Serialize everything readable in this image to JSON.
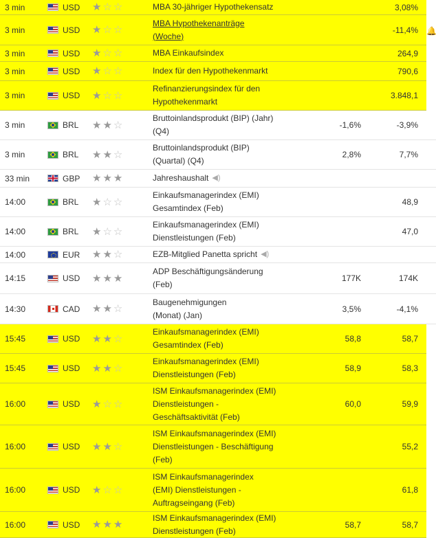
{
  "rows": [
    {
      "time": "3 min",
      "flag": "us",
      "currency": "USD",
      "stars": 1,
      "event": "MBA 30-jähriger Hypothekensatz",
      "actual": "",
      "previous": "3,08%",
      "highlight": true
    },
    {
      "time": "3 min",
      "flag": "us",
      "currency": "USD",
      "stars": 1,
      "event": "MBA Hypothekenanträge (Woche)",
      "actual": "",
      "previous": "-11,4%",
      "highlight": true,
      "link": true
    },
    {
      "time": "3 min",
      "flag": "us",
      "currency": "USD",
      "stars": 1,
      "event": "MBA Einkaufsindex",
      "actual": "",
      "previous": "264,9",
      "highlight": true
    },
    {
      "time": "3 min",
      "flag": "us",
      "currency": "USD",
      "stars": 1,
      "event": "Index für den Hypothekenmarkt",
      "actual": "",
      "previous": "790,6",
      "highlight": true
    },
    {
      "time": "3 min",
      "flag": "us",
      "currency": "USD",
      "stars": 1,
      "event": "Refinanzierungsindex für den Hypothekenmarkt",
      "actual": "",
      "previous": "3.848,1",
      "highlight": true
    },
    {
      "time": "3 min",
      "flag": "br",
      "currency": "BRL",
      "stars": 2,
      "event": "Bruttoinlandsprodukt (BIP) (Jahr) (Q4)",
      "actual": "-1,6%",
      "previous": "-3,9%",
      "highlight": false
    },
    {
      "time": "3 min",
      "flag": "br",
      "currency": "BRL",
      "stars": 2,
      "event": "Bruttoinlandsprodukt (BIP) (Quartal) (Q4)",
      "actual": "2,8%",
      "previous": "7,7%",
      "highlight": false
    },
    {
      "time": "33 min",
      "flag": "gb",
      "currency": "GBP",
      "stars": 3,
      "event": "Jahreshaushalt",
      "actual": "",
      "previous": "",
      "highlight": false,
      "speaker": true
    },
    {
      "time": "14:00",
      "flag": "br",
      "currency": "BRL",
      "stars": 1,
      "event": "Einkaufsmanagerindex (EMI) Gesamtindex (Feb)",
      "actual": "",
      "previous": "48,9",
      "highlight": false
    },
    {
      "time": "14:00",
      "flag": "br",
      "currency": "BRL",
      "stars": 1,
      "event": "Einkaufsmanagerindex (EMI) Dienstleistungen (Feb)",
      "actual": "",
      "previous": "47,0",
      "highlight": false
    },
    {
      "time": "14:00",
      "flag": "eu",
      "currency": "EUR",
      "stars": 2,
      "event": "EZB-Mitglied Panetta spricht",
      "actual": "",
      "previous": "",
      "highlight": false,
      "speaker": true
    },
    {
      "time": "14:15",
      "flag": "us",
      "currency": "USD",
      "stars": 3,
      "event": "ADP Beschäftigungsänderung (Feb)",
      "actual": "177K",
      "previous": "174K",
      "highlight": false
    },
    {
      "time": "14:30",
      "flag": "ca",
      "currency": "CAD",
      "stars": 2,
      "event": "Baugenehmigungen (Monat) (Jan)",
      "actual": "3,5%",
      "previous": "-4,1%",
      "highlight": false
    },
    {
      "time": "15:45",
      "flag": "us",
      "currency": "USD",
      "stars": 2,
      "event": "Einkaufsmanagerindex (EMI) Gesamtindex (Feb)",
      "actual": "58,8",
      "previous": "58,7",
      "highlight": true
    },
    {
      "time": "15:45",
      "flag": "us",
      "currency": "USD",
      "stars": 2,
      "event": "Einkaufsmanagerindex (EMI) Dienstleistungen (Feb)",
      "actual": "58,9",
      "previous": "58,3",
      "highlight": true
    },
    {
      "time": "16:00",
      "flag": "us",
      "currency": "USD",
      "stars": 1,
      "event": "ISM Einkaufsmanagerindex (EMI) Dienstleistungen - Geschäftsaktivität (Feb)",
      "actual": "60,0",
      "previous": "59,9",
      "highlight": true
    },
    {
      "time": "16:00",
      "flag": "us",
      "currency": "USD",
      "stars": 2,
      "event": "ISM Einkaufsmanagerindex (EMI) Dienstleistungen - Beschäftigung (Feb)",
      "actual": "",
      "previous": "55,2",
      "highlight": true
    },
    {
      "time": "16:00",
      "flag": "us",
      "currency": "USD",
      "stars": 1,
      "event": "ISM Einkaufsmanagerindex (EMI) Dienstleistungen - Auftragseingang (Feb)",
      "actual": "",
      "previous": "61,8",
      "highlight": true
    },
    {
      "time": "16:00",
      "flag": "us",
      "currency": "USD",
      "stars": 3,
      "event": "ISM Einkaufsmanagerindex (EMI) Dienstleistungen (Feb)",
      "actual": "58,7",
      "previous": "58,7",
      "highlight": true
    }
  ],
  "icons": {
    "alert": "bell-plus-icon",
    "speaker": "speaker-icon",
    "star": "star-icon"
  }
}
